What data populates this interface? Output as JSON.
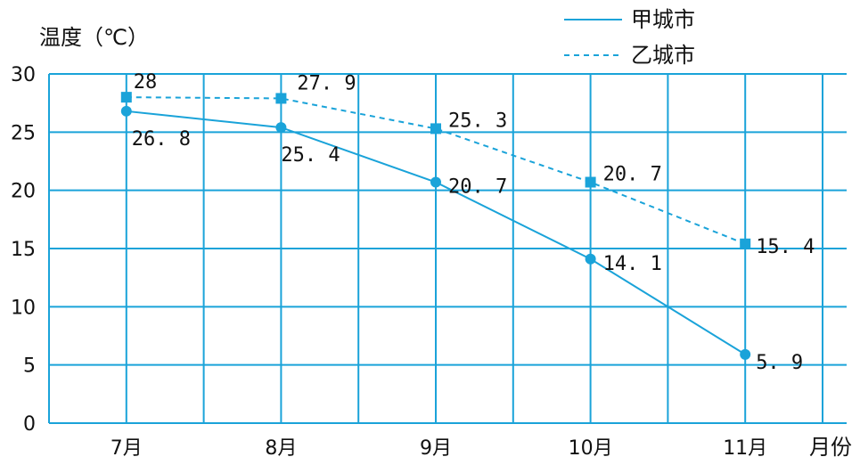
{
  "chart_data": {
    "type": "line",
    "ylabel": "温度（℃）",
    "xlabel": "月份",
    "categories": [
      "7月",
      "8月",
      "9月",
      "10月",
      "11月"
    ],
    "ylim": [
      0,
      30
    ],
    "yticks": [
      0,
      5,
      10,
      15,
      20,
      25,
      30
    ],
    "grid": true,
    "legend_position": "top-right",
    "series": [
      {
        "name": "甲城市",
        "values": [
          26.8,
          25.4,
          20.7,
          14.1,
          5.9
        ],
        "labels": [
          "26.8",
          "25.4",
          "20.7",
          "14.1",
          "5.9"
        ],
        "line_style": "solid",
        "marker": "circle",
        "color": "#1aa3d9"
      },
      {
        "name": "乙城市",
        "values": [
          28,
          27.9,
          25.3,
          20.7,
          15.4
        ],
        "labels": [
          "28",
          "27.9",
          "25.3",
          "20.7",
          "15.4"
        ],
        "line_style": "dashed",
        "marker": "square",
        "color": "#1aa3d9"
      }
    ],
    "grid_color": "#1aa3d9"
  }
}
